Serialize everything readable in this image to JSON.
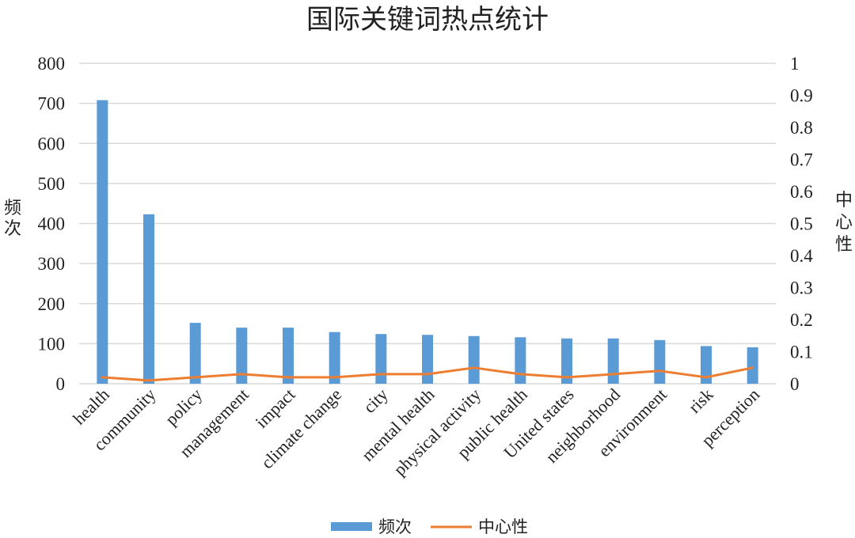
{
  "chart_data": {
    "type": "bar",
    "title": "国际关键词热点统计",
    "categories": [
      "health",
      "community",
      "policy",
      "management",
      "impact",
      "climate change",
      "city",
      "mental health",
      "physical activity",
      "public health",
      "United states",
      "neighborhood",
      "environment",
      "risk",
      "perception"
    ],
    "series": [
      {
        "name": "频次",
        "type": "bar",
        "axis": "left",
        "color": "#5b9bd5",
        "values": [
          708,
          423,
          152,
          140,
          140,
          129,
          124,
          122,
          119,
          116,
          113,
          113,
          109,
          94,
          91
        ]
      },
      {
        "name": "中心性",
        "type": "line",
        "axis": "right",
        "color": "#ed7d31",
        "values": [
          0.02,
          0.01,
          0.02,
          0.03,
          0.02,
          0.02,
          0.03,
          0.03,
          0.05,
          0.03,
          0.02,
          0.03,
          0.04,
          0.02,
          0.05
        ]
      }
    ],
    "ylabel": "频次",
    "y2label": "中心性",
    "ylim": [
      0,
      800
    ],
    "y2lim": [
      0,
      1
    ],
    "yticks": [
      "0",
      "100",
      "200",
      "300",
      "400",
      "500",
      "600",
      "700",
      "800"
    ],
    "y2ticks": [
      "0",
      "0.1",
      "0.2",
      "0.3",
      "0.4",
      "0.5",
      "0.6",
      "0.7",
      "0.8",
      "0.9",
      "1"
    ],
    "grid": true,
    "legend_position": "bottom"
  }
}
